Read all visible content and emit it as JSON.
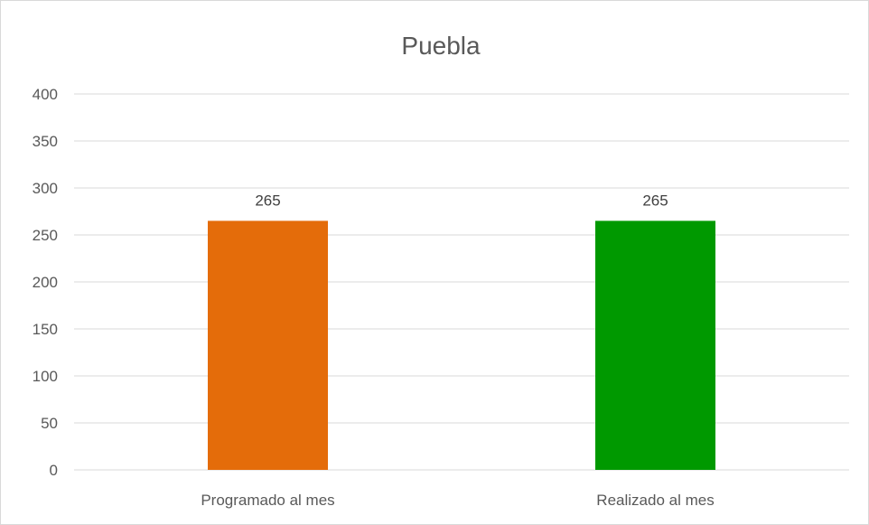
{
  "chart_data": {
    "type": "bar",
    "title": "Puebla",
    "categories": [
      "Programado al mes",
      "Realizado al mes"
    ],
    "values": [
      265,
      265
    ],
    "colors": [
      "#e46c0a",
      "#009900"
    ],
    "ylim": [
      0,
      400
    ],
    "yticks": [
      0,
      50,
      100,
      150,
      200,
      250,
      300,
      350,
      400
    ],
    "data_labels": [
      "265",
      "265"
    ],
    "grid": true,
    "legend": "none"
  }
}
